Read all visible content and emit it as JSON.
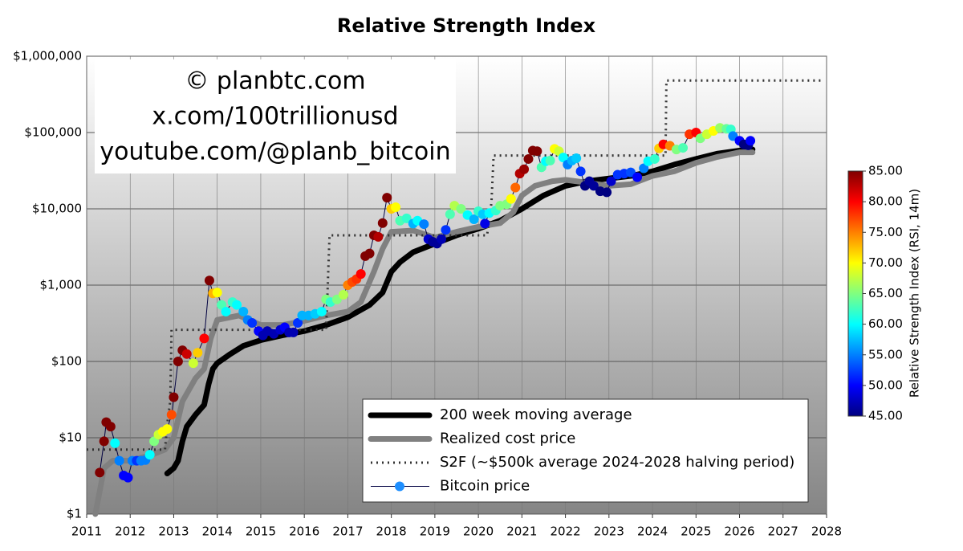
{
  "chart_data": {
    "type": "line",
    "title": "Relative Strength Index",
    "watermark": [
      "© planbtc.com",
      "x.com/100trillionusd",
      "youtube.com/@planb_bitcoin"
    ],
    "log_y": true,
    "grid": true,
    "legend": "lower right",
    "xlim": [
      2011,
      2028
    ],
    "xticks": [
      2011,
      2012,
      2013,
      2014,
      2015,
      2016,
      2017,
      2018,
      2019,
      2020,
      2021,
      2022,
      2023,
      2024,
      2025,
      2026,
      2027,
      2028
    ],
    "ylim": [
      1,
      1000000
    ],
    "yticks": [
      {
        "value": 1,
        "label": "$1"
      },
      {
        "value": 10,
        "label": "$10"
      },
      {
        "value": 100,
        "label": "$100"
      },
      {
        "value": 1000,
        "label": "$1,000"
      },
      {
        "value": 10000,
        "label": "$10,000"
      },
      {
        "value": 100000,
        "label": "$100,000"
      },
      {
        "value": 1000000,
        "label": "$1,000,000"
      }
    ],
    "colorbar": {
      "label": "Relative Strength Index (RSI, 14m)",
      "colormap": "jet",
      "clim": [
        45,
        85
      ],
      "ticks": [
        {
          "value": 45,
          "label": "45.00"
        },
        {
          "value": 50,
          "label": "50.00"
        },
        {
          "value": 55,
          "label": "55.00"
        },
        {
          "value": 60,
          "label": "60.00"
        },
        {
          "value": 65,
          "label": "65.00"
        },
        {
          "value": 70,
          "label": "70.00"
        },
        {
          "value": 75,
          "label": "75.00"
        },
        {
          "value": 80,
          "label": "80.00"
        },
        {
          "value": 85,
          "label": "85.00"
        }
      ]
    },
    "series": [
      {
        "name": "200 week moving average",
        "color": "#000000",
        "style": "line",
        "x": [
          2012.85,
          2013.0,
          2013.1,
          2013.2,
          2013.3,
          2013.5,
          2013.7,
          2013.8,
          2013.9,
          2014.0,
          2014.3,
          2014.6,
          2015.0,
          2015.5,
          2016.0,
          2016.5,
          2017.0,
          2017.5,
          2017.8,
          2018.0,
          2018.2,
          2018.5,
          2019.0,
          2019.5,
          2020.0,
          2020.5,
          2021.0,
          2021.5,
          2022.0,
          2022.5,
          2023.0,
          2023.5,
          2024.0,
          2024.5,
          2025.0,
          2025.5,
          2026.0,
          2026.3
        ],
        "values": [
          3.4,
          4,
          5,
          9,
          14,
          20,
          27,
          50,
          80,
          95,
          125,
          160,
          190,
          220,
          250,
          300,
          380,
          550,
          800,
          1500,
          2000,
          2700,
          3500,
          4500,
          5500,
          7000,
          10000,
          15000,
          20000,
          23000,
          25000,
          27000,
          31000,
          38000,
          45000,
          53000,
          58000,
          60000
        ]
      },
      {
        "name": "Realized cost price",
        "color": "#808080",
        "style": "line",
        "x": [
          2011.2,
          2011.4,
          2011.6,
          2012.0,
          2012.5,
          2012.8,
          2013.0,
          2013.2,
          2013.5,
          2013.7,
          2013.85,
          2014.0,
          2014.5,
          2015.0,
          2015.5,
          2016.0,
          2016.5,
          2017.0,
          2017.3,
          2017.6,
          2017.8,
          2018.0,
          2018.5,
          2019.0,
          2019.5,
          2020.0,
          2020.5,
          2020.8,
          2021.0,
          2021.3,
          2021.7,
          2022.0,
          2022.5,
          2023.0,
          2023.5,
          2024.0,
          2024.5,
          2025.0,
          2025.5,
          2026.0,
          2026.3
        ],
        "values": [
          1,
          4,
          5,
          5,
          6,
          7,
          10,
          30,
          60,
          80,
          200,
          350,
          400,
          300,
          300,
          340,
          400,
          450,
          600,
          1500,
          3000,
          5000,
          5200,
          4200,
          5000,
          5800,
          6500,
          9000,
          15000,
          20000,
          23000,
          24000,
          22000,
          20000,
          21000,
          27000,
          31000,
          40000,
          48000,
          55000,
          55000
        ]
      },
      {
        "name": "S2F (~$500k average 2024-2028 halving period)",
        "color": "#333333",
        "style": "dotted",
        "x": [
          2011.0,
          2012.8,
          2012.85,
          2012.92,
          2012.95,
          2016.5,
          2016.53,
          2016.58,
          2020.2,
          2020.3,
          2020.35,
          2024.3,
          2024.32,
          2027.95
        ],
        "values": [
          7,
          7,
          15,
          30,
          260,
          260,
          700,
          4500,
          4500,
          12000,
          50000,
          50000,
          480000,
          480000
        ]
      },
      {
        "name": "Bitcoin price",
        "color": "#000040",
        "marker_color": "#1e8fff",
        "style": "markers",
        "x": [
          2011.3,
          2011.4,
          2011.45,
          2011.55,
          2011.65,
          2011.75,
          2011.85,
          2011.95,
          2012.05,
          2012.15,
          2012.25,
          2012.35,
          2012.45,
          2012.55,
          2012.65,
          2012.75,
          2012.85,
          2012.95,
          2013.0,
          2013.1,
          2013.2,
          2013.3,
          2013.45,
          2013.55,
          2013.7,
          2013.82,
          2013.9,
          2014.0,
          2014.1,
          2014.2,
          2014.35,
          2014.45,
          2014.6,
          2014.7,
          2014.8,
          2014.95,
          2015.05,
          2015.15,
          2015.3,
          2015.45,
          2015.55,
          2015.65,
          2015.75,
          2015.85,
          2015.95,
          2016.1,
          2016.25,
          2016.4,
          2016.5,
          2016.6,
          2016.75,
          2016.9,
          2017.0,
          2017.1,
          2017.2,
          2017.3,
          2017.4,
          2017.5,
          2017.6,
          2017.7,
          2017.8,
          2017.9,
          2018.0,
          2018.1,
          2018.2,
          2018.35,
          2018.5,
          2018.6,
          2018.75,
          2018.85,
          2018.95,
          2019.05,
          2019.15,
          2019.25,
          2019.35,
          2019.45,
          2019.6,
          2019.75,
          2019.9,
          2020.0,
          2020.1,
          2020.15,
          2020.25,
          2020.4,
          2020.5,
          2020.65,
          2020.75,
          2020.85,
          2020.95,
          2021.05,
          2021.15,
          2021.25,
          2021.35,
          2021.45,
          2021.55,
          2021.65,
          2021.75,
          2021.85,
          2021.95,
          2022.05,
          2022.15,
          2022.25,
          2022.35,
          2022.45,
          2022.55,
          2022.65,
          2022.8,
          2022.95,
          2023.05,
          2023.2,
          2023.35,
          2023.5,
          2023.65,
          2023.8,
          2023.9,
          2024.05,
          2024.15,
          2024.25,
          2024.4,
          2024.55,
          2024.7,
          2024.85,
          2025.0,
          2025.1,
          2025.25,
          2025.4,
          2025.55,
          2025.7,
          2025.8,
          2025.85,
          2026.0,
          2026.1,
          2026.2,
          2026.25
        ],
        "values": [
          3.5,
          9,
          16,
          14,
          8.5,
          5,
          3.2,
          3,
          5,
          5,
          5,
          5.1,
          6,
          9,
          11,
          12,
          13,
          20,
          34,
          100,
          140,
          125,
          95,
          130,
          200,
          1150,
          780,
          800,
          550,
          450,
          600,
          550,
          450,
          350,
          320,
          250,
          220,
          250,
          230,
          260,
          280,
          240,
          240,
          320,
          400,
          400,
          420,
          450,
          650,
          600,
          650,
          750,
          1000,
          1100,
          1200,
          1400,
          2400,
          2600,
          4500,
          4300,
          6500,
          14000,
          10000,
          10500,
          7000,
          7500,
          6400,
          7000,
          6300,
          4000,
          3700,
          3500,
          4000,
          5300,
          8500,
          11000,
          10000,
          8300,
          7300,
          9300,
          8500,
          6400,
          8800,
          9500,
          11000,
          11500,
          13500,
          19000,
          29000,
          33000,
          45000,
          58000,
          57000,
          35000,
          42000,
          43000,
          61000,
          57000,
          47000,
          38000,
          43000,
          46000,
          31000,
          20000,
          23000,
          20000,
          17000,
          16500,
          23000,
          28000,
          29000,
          30000,
          26000,
          34000,
          42000,
          45000,
          62000,
          70000,
          67000,
          60000,
          63000,
          95000,
          100000,
          84000,
          95000,
          105000,
          115000,
          112000,
          110000,
          90000,
          78000,
          70000,
          68000,
          78000
        ],
        "rsi": [
          85,
          85,
          85,
          85,
          60,
          55,
          50,
          50,
          55,
          52,
          55,
          55,
          60,
          65,
          68,
          70,
          70,
          77,
          85,
          85,
          85,
          82,
          68,
          72,
          80,
          85,
          73,
          70,
          63,
          60,
          62,
          60,
          57,
          55,
          52,
          50,
          47,
          47,
          47,
          48,
          50,
          47,
          47,
          52,
          57,
          57,
          58,
          60,
          65,
          62,
          65,
          67,
          75,
          77,
          78,
          80,
          85,
          85,
          85,
          83,
          85,
          85,
          72,
          70,
          63,
          62,
          57,
          60,
          55,
          48,
          46,
          46,
          47,
          52,
          63,
          67,
          65,
          60,
          57,
          62,
          58,
          49,
          60,
          62,
          65,
          65,
          70,
          76,
          83,
          84,
          85,
          85,
          85,
          63,
          60,
          63,
          70,
          68,
          60,
          55,
          57,
          58,
          52,
          45,
          46,
          46,
          45,
          45,
          48,
          52,
          52,
          53,
          50,
          55,
          60,
          62,
          72,
          80,
          75,
          65,
          63,
          78,
          80,
          65,
          68,
          70,
          66,
          64,
          62,
          55,
          50,
          45,
          45,
          50
        ]
      }
    ]
  }
}
